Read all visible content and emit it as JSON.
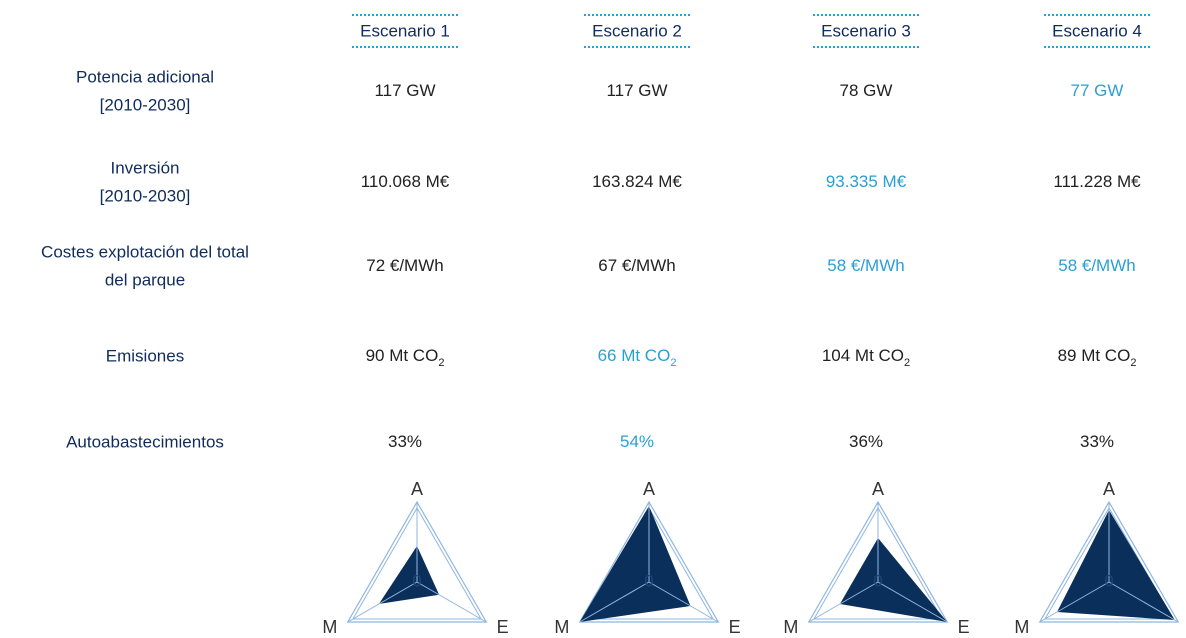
{
  "table": {
    "headers": [
      "Escenario 1",
      "Escenario 2",
      "Escenario 3",
      "Escenario 4"
    ],
    "rows": [
      {
        "label": [
          "Potencia adicional",
          "[2010-2030]"
        ],
        "cells": [
          {
            "text": "117 GW"
          },
          {
            "text": "117 GW"
          },
          {
            "text": "78 GW"
          },
          {
            "text": "77 GW",
            "highlight": true
          }
        ]
      },
      {
        "label": [
          "Inversión",
          "[2010-2030]"
        ],
        "cells": [
          {
            "text": "110.068 M€"
          },
          {
            "text": "163.824 M€"
          },
          {
            "text": "93.335 M€",
            "highlight": true
          },
          {
            "text": "111.228 M€"
          }
        ]
      },
      {
        "label": [
          "Costes explotación del total",
          "del parque"
        ],
        "cells": [
          {
            "text": "72 €/MWh"
          },
          {
            "text": "67 €/MWh"
          },
          {
            "text": "58 €/MWh",
            "highlight": true
          },
          {
            "text": "58 €/MWh",
            "highlight": true
          }
        ]
      },
      {
        "label": [
          "Emisiones"
        ],
        "cells": [
          {
            "text": "90 Mt CO",
            "sub": "2"
          },
          {
            "text": "66 Mt CO",
            "sub": "2",
            "highlight": true
          },
          {
            "text": "104 Mt CO",
            "sub": "2"
          },
          {
            "text": "89 Mt CO",
            "sub": "2"
          }
        ]
      },
      {
        "label": [
          "Autoabastecimientos"
        ],
        "cells": [
          {
            "text": "33%"
          },
          {
            "text": "54%",
            "highlight": true
          },
          {
            "text": "36%"
          },
          {
            "text": "33%"
          }
        ]
      }
    ]
  },
  "chart_data": [
    {
      "type": "radar",
      "axes": [
        "A",
        "E",
        "M"
      ],
      "values": [
        0.45,
        0.32,
        0.55
      ],
      "rlim": [
        0,
        1
      ],
      "rticks": [
        0
      ],
      "color": "#0b2f5b",
      "outline_color": "#8fb6e0"
    },
    {
      "type": "radar",
      "axes": [
        "A",
        "E",
        "M"
      ],
      "values": [
        0.95,
        0.6,
        1.0
      ],
      "rlim": [
        0,
        1
      ],
      "rticks": [
        0
      ],
      "color": "#0b2f5b",
      "outline_color": "#8fb6e0"
    },
    {
      "type": "radar",
      "axes": [
        "A",
        "E",
        "M"
      ],
      "values": [
        0.55,
        1.0,
        0.55
      ],
      "rlim": [
        0,
        1
      ],
      "rticks": [
        0
      ],
      "color": "#0b2f5b",
      "outline_color": "#8fb6e0"
    },
    {
      "type": "radar",
      "axes": [
        "A",
        "E",
        "M"
      ],
      "values": [
        0.9,
        0.95,
        0.75
      ],
      "rlim": [
        0,
        1
      ],
      "rticks": [
        0
      ],
      "color": "#0b2f5b",
      "outline_color": "#8fb6e0"
    }
  ]
}
